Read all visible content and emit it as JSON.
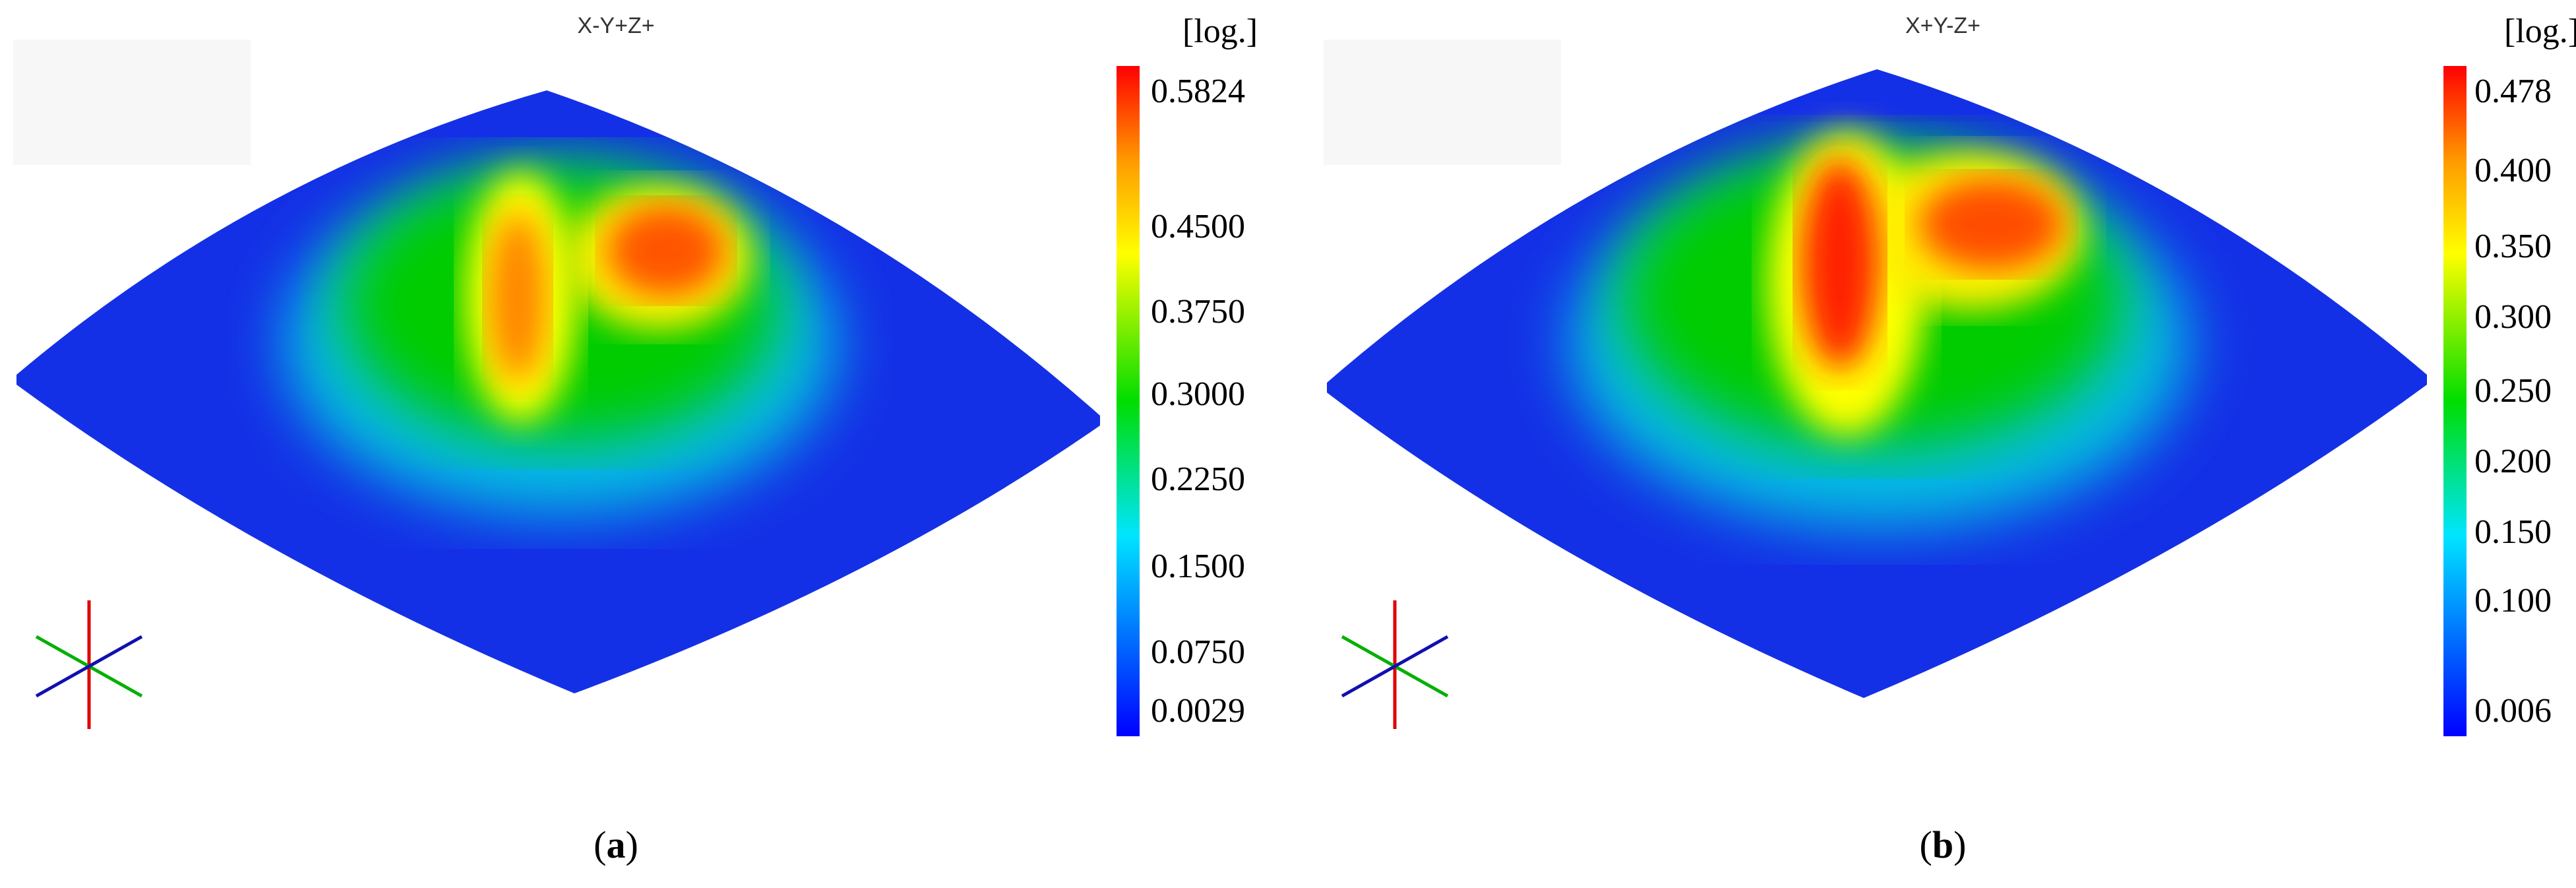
{
  "panels": [
    {
      "view": "X-Y+Z+",
      "unit": "[log.]",
      "ticks": [
        "0.5824",
        "0.4500",
        "0.3750",
        "0.3000",
        "0.2250",
        "0.1500",
        "0.0750",
        "0.0029"
      ],
      "caption": [
        "(",
        "a",
        ")"
      ]
    },
    {
      "view": "X+Y-Z+",
      "unit": "[log.]",
      "ticks": [
        "0.478",
        "0.400",
        "0.350",
        "0.300",
        "0.250",
        "0.200",
        "0.150",
        "0.100",
        "0.006"
      ],
      "caption": [
        "(",
        "b",
        ")"
      ]
    }
  ]
}
